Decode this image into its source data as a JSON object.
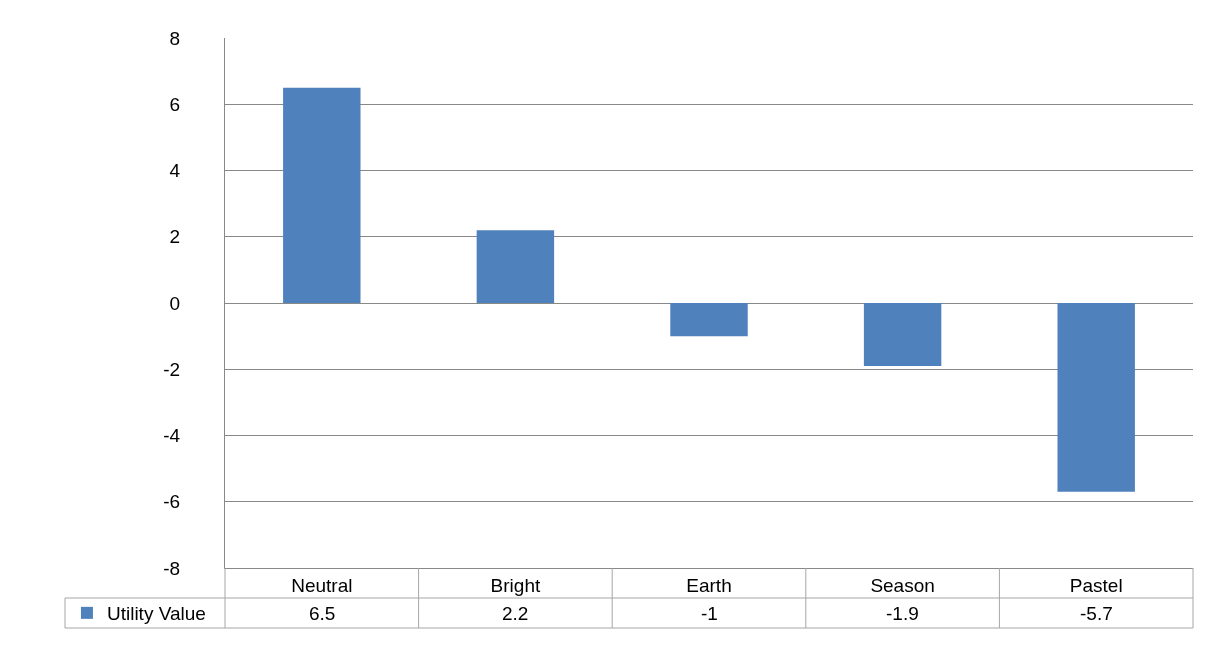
{
  "chart_data": {
    "type": "bar",
    "categories": [
      "Neutral",
      "Bright",
      "Earth",
      "Season",
      "Pastel"
    ],
    "series": [
      {
        "name": "Utility Value",
        "color": "#4f81bd",
        "values": [
          6.5,
          2.2,
          -1,
          -1.9,
          -5.7
        ]
      }
    ],
    "ylim": [
      -8,
      8
    ],
    "yticks": [
      -8,
      -6,
      -4,
      -2,
      0,
      2,
      4,
      6,
      8
    ],
    "grid": "y",
    "legend": "bottom left",
    "data_labels": true
  }
}
